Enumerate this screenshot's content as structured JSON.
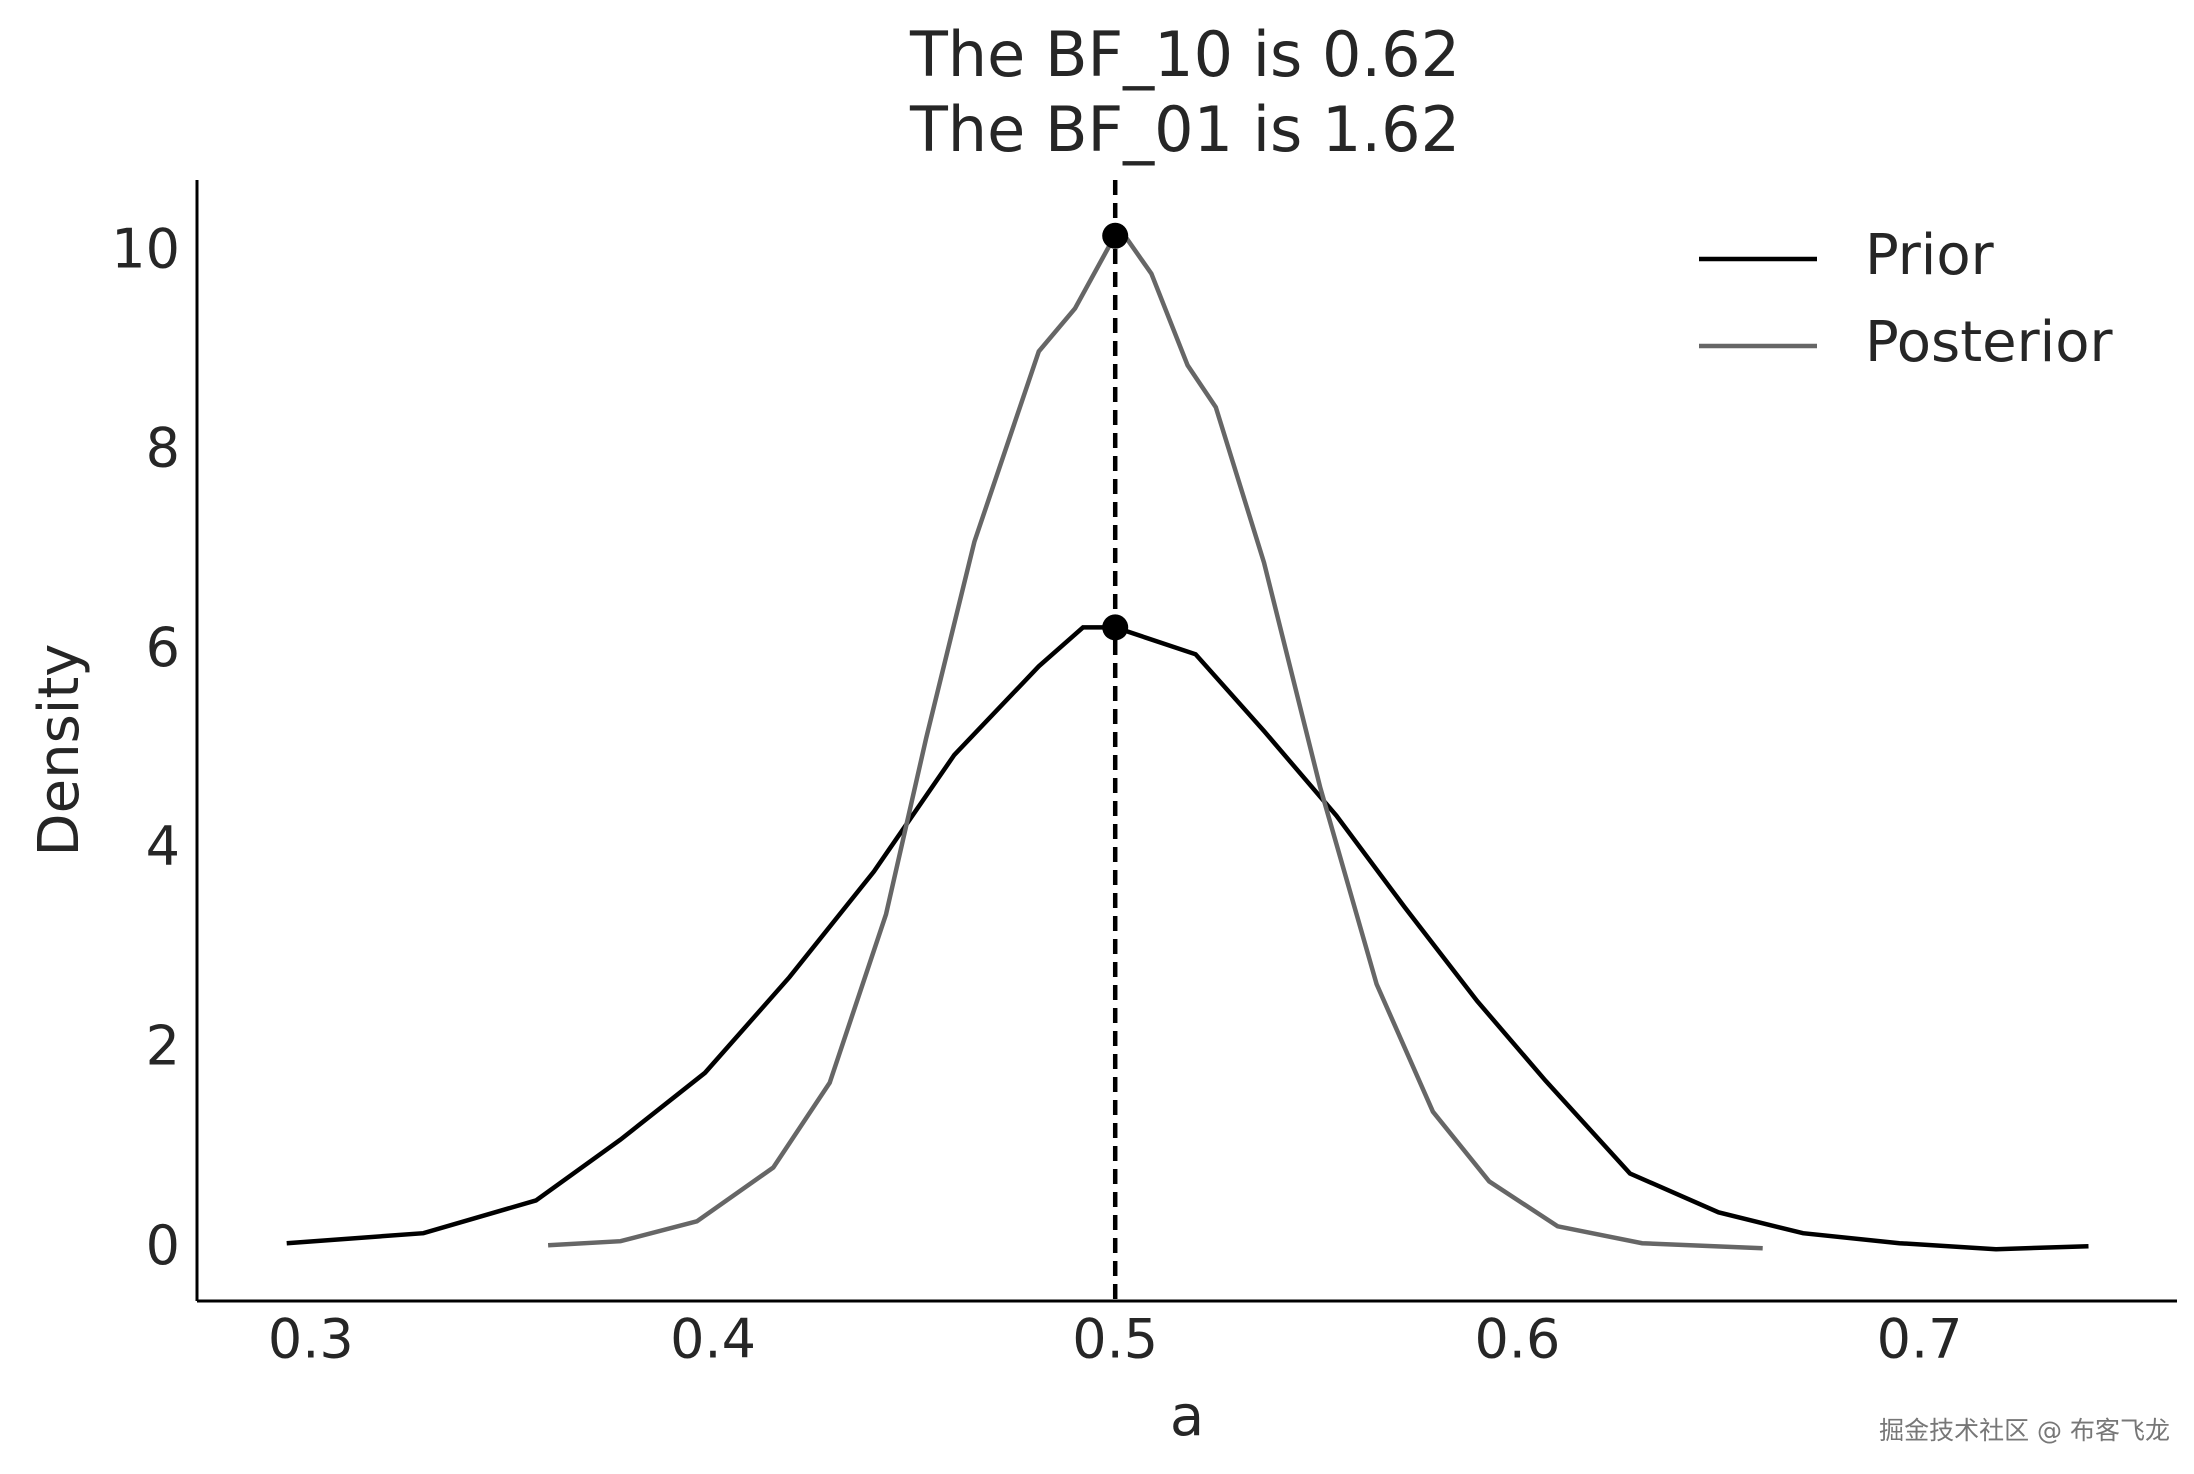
{
  "chart_data": {
    "type": "line",
    "title": [
      "The BF_10 is 0.62",
      "The BF_01 is 1.62"
    ],
    "x_label": "a",
    "y_label": "Density",
    "xlim": [
      0.2717,
      0.764
    ],
    "ylim": [
      -0.52,
      10.73
    ],
    "xticks": [
      0.3,
      0.4,
      0.5,
      0.6,
      0.7
    ],
    "yticks": [
      0,
      2,
      4,
      6,
      8,
      10
    ],
    "grid": false,
    "legend": "upper right",
    "series": [
      {
        "name": "Prior",
        "color": "#000000",
        "x": [
          0.294,
          0.328,
          0.356,
          0.377,
          0.398,
          0.419,
          0.44,
          0.46,
          0.481,
          0.492,
          0.5,
          0.52,
          0.537,
          0.555,
          0.572,
          0.59,
          0.607,
          0.628,
          0.65,
          0.671,
          0.695,
          0.719,
          0.742
        ],
        "values": [
          0.06,
          0.16,
          0.49,
          1.1,
          1.77,
          2.73,
          3.79,
          4.96,
          5.85,
          6.24,
          6.24,
          5.97,
          5.2,
          4.35,
          3.43,
          2.49,
          1.69,
          0.76,
          0.37,
          0.16,
          0.06,
          0.0,
          0.03
        ]
      },
      {
        "name": "Posterior",
        "color": "#666666",
        "x": [
          0.359,
          0.377,
          0.396,
          0.415,
          0.429,
          0.443,
          0.453,
          0.465,
          0.481,
          0.49,
          0.501,
          0.509,
          0.518,
          0.525,
          0.537,
          0.551,
          0.565,
          0.579,
          0.593,
          0.61,
          0.631,
          0.661
        ],
        "values": [
          0.04,
          0.08,
          0.28,
          0.82,
          1.67,
          3.36,
          5.13,
          7.1,
          9.01,
          9.44,
          10.25,
          9.79,
          8.87,
          8.45,
          6.89,
          4.63,
          2.66,
          1.38,
          0.68,
          0.23,
          0.06,
          0.01
        ]
      }
    ],
    "reference_x": 0.5,
    "markers": [
      {
        "x": 0.5,
        "y": 10.17
      },
      {
        "x": 0.5,
        "y": 6.24
      }
    ],
    "marker_color": "#000000",
    "watermark": "掘金技术社区 @ 布客飞龙"
  }
}
